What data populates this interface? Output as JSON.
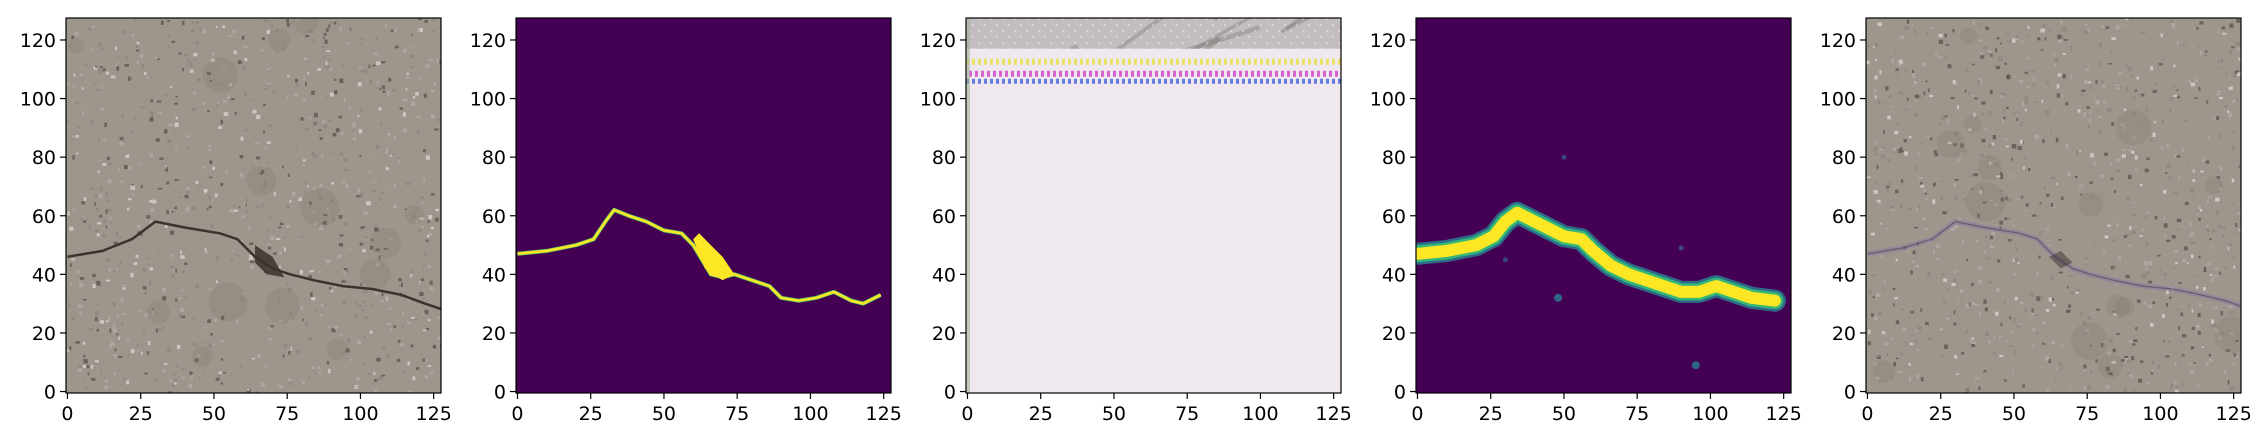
{
  "figure": {
    "panels": [
      {
        "name": "crack-photo",
        "kind": "photo",
        "colors": {
          "base": "#9c968d",
          "light": "#b2ada4",
          "dark": "#3a342c",
          "speck_light": "#d8d4cc",
          "speck_dark": "#5c564e"
        },
        "crack_path": [
          [
            0,
            46
          ],
          [
            12,
            48
          ],
          [
            22,
            52
          ],
          [
            30,
            58
          ],
          [
            40,
            56
          ],
          [
            52,
            54
          ],
          [
            58,
            52
          ],
          [
            64,
            46
          ],
          [
            70,
            42
          ],
          [
            76,
            40
          ],
          [
            84,
            38
          ],
          [
            94,
            36
          ],
          [
            104,
            35
          ],
          [
            114,
            33
          ],
          [
            122,
            30
          ],
          [
            128,
            28
          ]
        ],
        "blob_path": [
          [
            64,
            44
          ],
          [
            68,
            40
          ],
          [
            74,
            39
          ],
          [
            70,
            46
          ],
          [
            64,
            50
          ]
        ]
      },
      {
        "name": "ground-truth-mask",
        "kind": "mask",
        "colors": {
          "bg": "#440154",
          "fg": "#fde725",
          "edge": "#5ec962"
        },
        "crack_path": [
          [
            0,
            47
          ],
          [
            10,
            48
          ],
          [
            20,
            50
          ],
          [
            26,
            52
          ],
          [
            30,
            58
          ],
          [
            33,
            62
          ],
          [
            38,
            60
          ],
          [
            44,
            58
          ],
          [
            50,
            55
          ],
          [
            56,
            54
          ],
          [
            60,
            50
          ],
          [
            63,
            45
          ],
          [
            66,
            40
          ],
          [
            70,
            39
          ],
          [
            74,
            40
          ],
          [
            80,
            38
          ],
          [
            86,
            36
          ],
          [
            90,
            32
          ],
          [
            96,
            31
          ],
          [
            102,
            32
          ],
          [
            108,
            34
          ],
          [
            114,
            31
          ],
          [
            118,
            30
          ],
          [
            124,
            33
          ]
        ],
        "blob_path": [
          [
            60,
            52
          ],
          [
            64,
            42
          ],
          [
            70,
            38
          ],
          [
            74,
            40
          ],
          [
            70,
            46
          ],
          [
            66,
            50
          ],
          [
            62,
            54
          ]
        ]
      },
      {
        "name": "generated-texture",
        "kind": "texture",
        "colors": {
          "base": "#c3bcc0",
          "pink": "#c8a3c0",
          "green": "#a4b49a",
          "dark": "#6b6a62",
          "stripe_magenta": "#d040c8",
          "stripe_blue": "#4060d8",
          "stripe_yellow": "#e8e040"
        }
      },
      {
        "name": "predicted-mask",
        "kind": "prediction",
        "colors": {
          "bg": "#440154",
          "fg": "#fde725",
          "mid": "#35b779",
          "halo": "#2a788e"
        },
        "crack_path": [
          [
            0,
            47
          ],
          [
            10,
            48
          ],
          [
            20,
            50
          ],
          [
            26,
            53
          ],
          [
            30,
            58
          ],
          [
            34,
            61
          ],
          [
            40,
            58
          ],
          [
            46,
            55
          ],
          [
            50,
            53
          ],
          [
            56,
            52
          ],
          [
            60,
            48
          ],
          [
            66,
            43
          ],
          [
            72,
            40
          ],
          [
            78,
            38
          ],
          [
            84,
            36
          ],
          [
            90,
            34
          ],
          [
            96,
            34
          ],
          [
            102,
            36
          ],
          [
            108,
            34
          ],
          [
            114,
            32
          ],
          [
            122,
            31
          ]
        ],
        "dots": [
          [
            48,
            32
          ],
          [
            95,
            9
          ],
          [
            90,
            49
          ],
          [
            30,
            45
          ],
          [
            50,
            80
          ]
        ]
      },
      {
        "name": "overlay-photo",
        "kind": "photo",
        "colors": {
          "base": "#9c968d",
          "light": "#b2ada4",
          "dark": "#3a342c",
          "speck_light": "#d8d4cc",
          "speck_dark": "#5c564e",
          "overlay": "#8a78a8"
        },
        "crack_path": [
          [
            0,
            47
          ],
          [
            12,
            49
          ],
          [
            22,
            52
          ],
          [
            30,
            58
          ],
          [
            40,
            56
          ],
          [
            52,
            54
          ],
          [
            58,
            52
          ],
          [
            64,
            46
          ],
          [
            70,
            42
          ],
          [
            76,
            40
          ],
          [
            84,
            38
          ],
          [
            94,
            36
          ],
          [
            104,
            35
          ],
          [
            114,
            33
          ],
          [
            122,
            31
          ],
          [
            128,
            29
          ]
        ],
        "blob_path": [
          [
            62,
            46
          ],
          [
            66,
            42
          ],
          [
            70,
            44
          ],
          [
            66,
            48
          ]
        ]
      }
    ],
    "xticks": [
      0,
      25,
      50,
      75,
      100,
      125
    ],
    "yticks": [
      0,
      20,
      40,
      60,
      80,
      100,
      120
    ],
    "xlim": [
      -0.5,
      127.5
    ],
    "ylim": [
      127.5,
      -0.5
    ]
  }
}
